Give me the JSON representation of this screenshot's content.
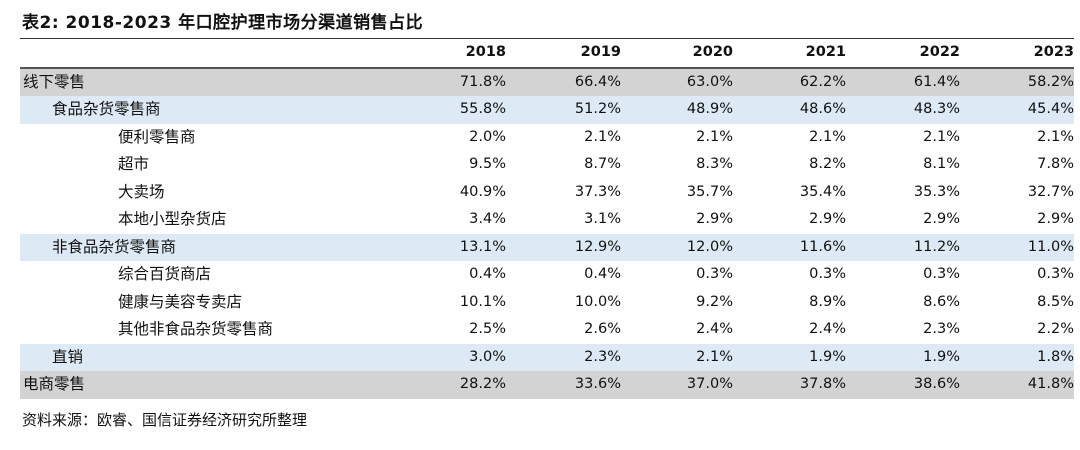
{
  "title": "表2: 2018-2023 年口腔护理市场分渠道销售占比",
  "table": {
    "columns": [
      "2018",
      "2019",
      "2020",
      "2021",
      "2022",
      "2023"
    ],
    "rows": [
      {
        "label": "线下零售",
        "values": [
          "71.8%",
          "66.4%",
          "63.0%",
          "62.2%",
          "61.4%",
          "58.2%"
        ]
      },
      {
        "label": "食品杂货零售商",
        "values": [
          "55.8%",
          "51.2%",
          "48.9%",
          "48.6%",
          "48.3%",
          "45.4%"
        ]
      },
      {
        "label": "便利零售商",
        "values": [
          "2.0%",
          "2.1%",
          "2.1%",
          "2.1%",
          "2.1%",
          "2.1%"
        ]
      },
      {
        "label": "超市",
        "values": [
          "9.5%",
          "8.7%",
          "8.3%",
          "8.2%",
          "8.1%",
          "7.8%"
        ]
      },
      {
        "label": "大卖场",
        "values": [
          "40.9%",
          "37.3%",
          "35.7%",
          "35.4%",
          "35.3%",
          "32.7%"
        ]
      },
      {
        "label": "本地小型杂货店",
        "values": [
          "3.4%",
          "3.1%",
          "2.9%",
          "2.9%",
          "2.9%",
          "2.9%"
        ]
      },
      {
        "label": "非食品杂货零售商",
        "values": [
          "13.1%",
          "12.9%",
          "12.0%",
          "11.6%",
          "11.2%",
          "11.0%"
        ]
      },
      {
        "label": "综合百货商店",
        "values": [
          "0.4%",
          "0.4%",
          "0.3%",
          "0.3%",
          "0.3%",
          "0.3%"
        ]
      },
      {
        "label": "健康与美容专卖店",
        "values": [
          "10.1%",
          "10.0%",
          "9.2%",
          "8.9%",
          "8.6%",
          "8.5%"
        ]
      },
      {
        "label": "其他非食品杂货零售商",
        "values": [
          "2.5%",
          "2.6%",
          "2.4%",
          "2.4%",
          "2.3%",
          "2.2%"
        ]
      },
      {
        "label": "直销",
        "values": [
          "3.0%",
          "2.3%",
          "2.1%",
          "1.9%",
          "1.9%",
          "1.8%"
        ]
      },
      {
        "label": "电商零售",
        "values": [
          "28.2%",
          "33.6%",
          "37.0%",
          "37.8%",
          "38.6%",
          "41.8%"
        ]
      }
    ]
  },
  "source": "资料来源：欧睿、国信证券经济研究所整理",
  "colors": {
    "level0_row_bg": "#d3d3d3",
    "level1_row_bg": "#ddeaf5",
    "text": "#111111"
  }
}
